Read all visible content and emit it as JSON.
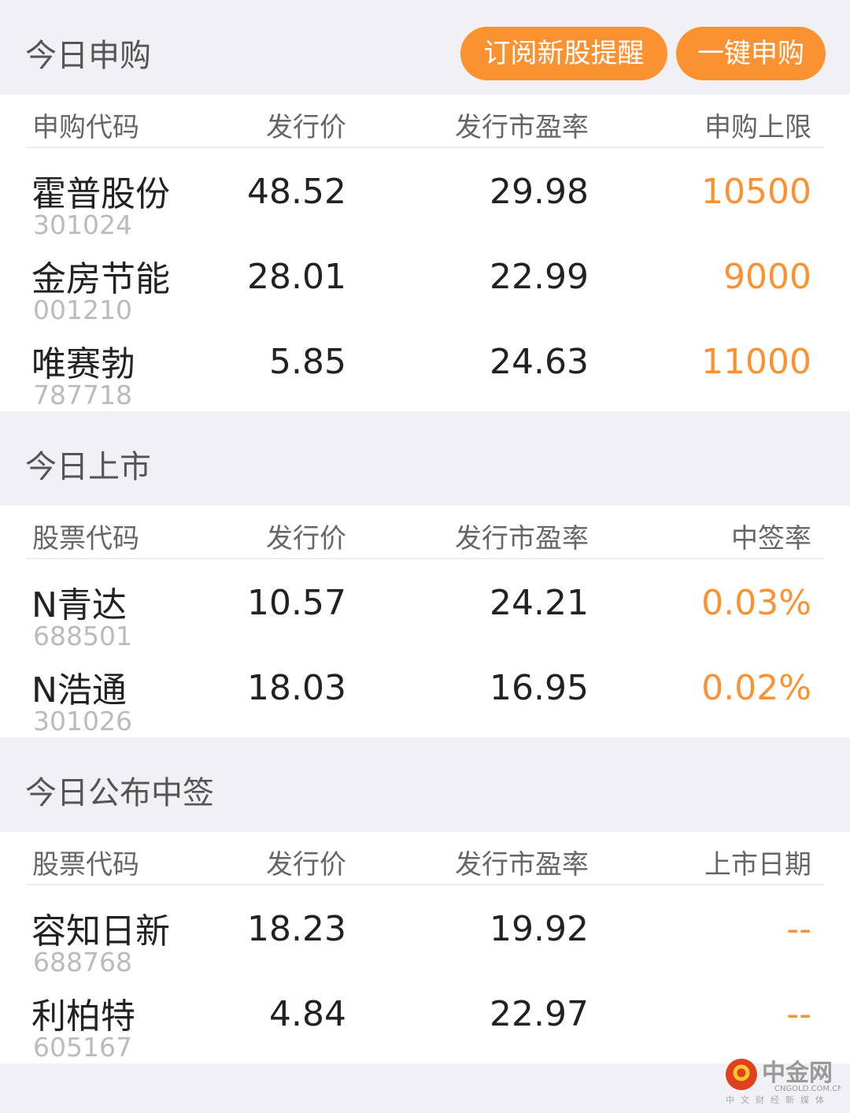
{
  "sections": [
    {
      "title": "今日申购",
      "buttons": [
        "订阅新股提醒",
        "一键申购"
      ],
      "headers": [
        "申购代码",
        "发行价",
        "发行市盈率",
        "申购上限"
      ],
      "rows": [
        {
          "name": "霍普股份",
          "code": "301024",
          "price": "48.52",
          "pe": "29.98",
          "extra": "10500"
        },
        {
          "name": "金房节能",
          "code": "001210",
          "price": "28.01",
          "pe": "22.99",
          "extra": "9000"
        },
        {
          "name": "唯赛勃",
          "code": "787718",
          "price": "5.85",
          "pe": "24.63",
          "extra": "11000"
        }
      ]
    },
    {
      "title": "今日上市",
      "headers": [
        "股票代码",
        "发行价",
        "发行市盈率",
        "中签率"
      ],
      "rows": [
        {
          "name": "N青达",
          "code": "688501",
          "price": "10.57",
          "pe": "24.21",
          "extra": "0.03%"
        },
        {
          "name": "N浩通",
          "code": "301026",
          "price": "18.03",
          "pe": "16.95",
          "extra": "0.02%"
        }
      ]
    },
    {
      "title": "今日公布中签",
      "headers": [
        "股票代码",
        "发行价",
        "发行市盈率",
        "上市日期"
      ],
      "rows": [
        {
          "name": "容知日新",
          "code": "688768",
          "price": "18.23",
          "pe": "19.92",
          "extra": "--"
        },
        {
          "name": "利柏特",
          "code": "605167",
          "price": "4.84",
          "pe": "22.97",
          "extra": "--"
        }
      ]
    }
  ],
  "watermark": {
    "brand": "中金网",
    "domain": "CNGOLD.COM.CN",
    "slogan": "中文财经新媒体"
  },
  "colors": {
    "accent": "#fb9232",
    "background": "#f0f0f5"
  }
}
